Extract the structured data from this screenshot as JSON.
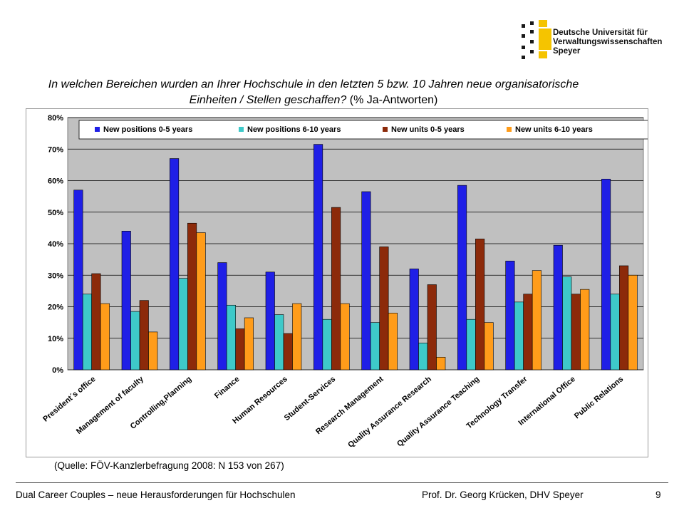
{
  "logo": {
    "lines": [
      "Deutsche Universität für",
      "Verwaltungswissenschaften",
      "Speyer"
    ],
    "accent_color": "#f5c400"
  },
  "title": {
    "main": "In welchen Bereichen wurden an Ihrer Hochschule in den letzten 5 bzw. 10 Jahren neue organisatorische Einheiten / Stellen geschaffen?",
    "suffix": "(% Ja-Antworten)"
  },
  "source": "(Quelle: FÖV-Kanzlerbefragung 2008: N 153 von 267)",
  "footer": {
    "left": "Dual Career Couples – neue Herausforderungen für Hochschulen",
    "right": "Prof. Dr. Georg Krücken, DHV Speyer",
    "page": "9"
  },
  "chart_data": {
    "type": "bar",
    "categories": [
      "President´s office",
      "Management of faculty",
      "Controlling,Planning",
      "Finance",
      "Human Resources",
      "Student-Services",
      "Research Management",
      "Quality Assurance Research",
      "Quality Assurance Teaching",
      "Technology Transfer",
      "International Office",
      "Public Relations"
    ],
    "series": [
      {
        "name": "New positions 0-5 years",
        "color": "#1f1fe6",
        "values": [
          57,
          44,
          67,
          34,
          31,
          71.5,
          56.5,
          32,
          58.5,
          34.5,
          39.5,
          60.5
        ]
      },
      {
        "name": "New positions 6-10 years",
        "color": "#3ec9c9",
        "values": [
          24,
          18.5,
          29,
          20.5,
          17.5,
          16,
          15,
          8.5,
          16,
          21.5,
          29.5,
          24
        ]
      },
      {
        "name": "New units 0-5 years",
        "color": "#8c2a0a",
        "values": [
          30.5,
          22,
          46.5,
          13,
          11.5,
          51.5,
          39,
          27,
          41.5,
          24,
          24,
          33
        ]
      },
      {
        "name": "New units 6-10 years",
        "color": "#ff9c1a",
        "values": [
          21,
          12,
          43.5,
          16.5,
          21,
          21,
          18,
          4,
          15,
          31.5,
          25.5,
          30
        ]
      }
    ],
    "y_ticks": [
      "0%",
      "10%",
      "20%",
      "30%",
      "40%",
      "50%",
      "60%",
      "70%",
      "80%"
    ],
    "ylim": [
      0,
      80
    ],
    "grid": true,
    "legend_position": "top",
    "plot_background": "#c0c0c0"
  }
}
